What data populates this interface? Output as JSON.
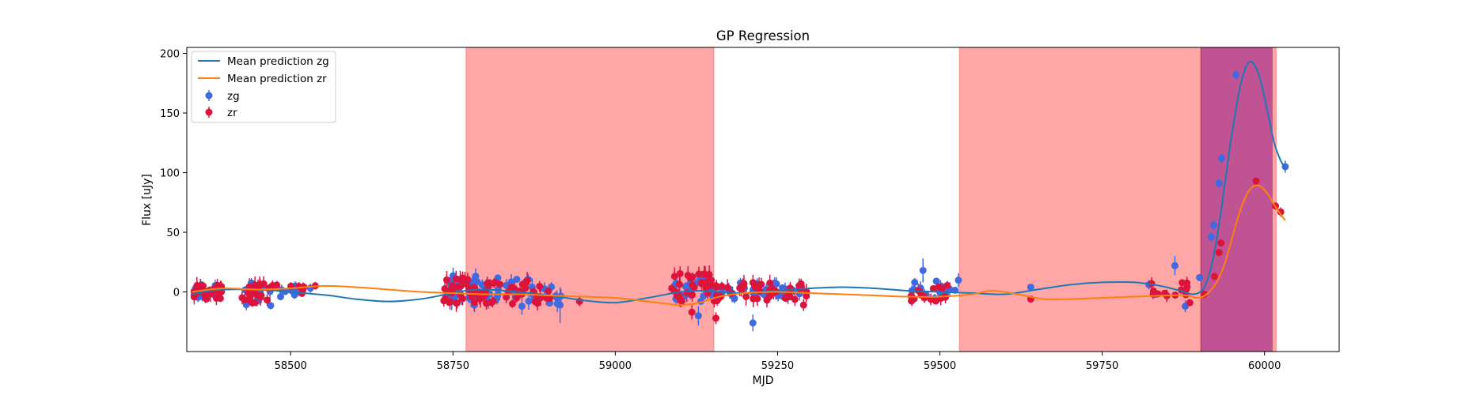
{
  "chart_data": {
    "type": "scatter",
    "title": "GP Regression",
    "xlabel": "MJD",
    "ylabel": "Flux [uJy]",
    "xlim": [
      58340,
      60115
    ],
    "ylim": [
      -50,
      205
    ],
    "xticks": [
      58500,
      58750,
      59000,
      59250,
      59500,
      59750,
      60000
    ],
    "yticks": [
      0,
      50,
      100,
      150,
      200
    ],
    "grid": false,
    "legend_position": "upper-left",
    "colors": {
      "zg_points": "#4169e1",
      "zr_points": "#dc143c",
      "zg_line": "#1f77b4",
      "zr_line": "#ff7f0e",
      "span_red": "#ff0000",
      "span_purple": "#800080"
    },
    "shaded_spans": [
      {
        "x0": 58770,
        "x1": 59152,
        "color": "red"
      },
      {
        "x0": 59530,
        "x1": 59902,
        "color": "red"
      },
      {
        "x0": 59902,
        "x1": 60018,
        "color": "red"
      },
      {
        "x0": 59902,
        "x1": 60012,
        "color": "purple"
      }
    ],
    "lines": [
      {
        "name": "Mean prediction zg",
        "x": [
          58348,
          58375,
          58400,
          58440,
          58480,
          58520,
          58560,
          58600,
          58650,
          58700,
          58740,
          58770,
          58800,
          58850,
          58900,
          58950,
          59000,
          59050,
          59100,
          59130,
          59160,
          59200,
          59250,
          59300,
          59350,
          59400,
          59450,
          59500,
          59550,
          59600,
          59650,
          59700,
          59750,
          59800,
          59840,
          59870,
          59890,
          59905,
          59915,
          59925,
          59935,
          59945,
          59955,
          59965,
          59975,
          59985,
          59995,
          60005,
          60015,
          60025,
          60032
        ],
        "y": [
          -2,
          1,
          2,
          2,
          1,
          -1,
          -3,
          -6,
          -8,
          -6,
          -2,
          1,
          2,
          0,
          -3,
          -7,
          -9,
          -5,
          0,
          1,
          0,
          -1,
          1,
          3,
          4,
          3,
          1,
          0,
          -1,
          -2,
          2,
          6,
          8,
          8,
          5,
          1,
          -2,
          2,
          15,
          40,
          75,
          115,
          150,
          178,
          192,
          190,
          175,
          150,
          125,
          110,
          104
        ]
      },
      {
        "name": "Mean prediction zr",
        "x": [
          58348,
          58375,
          58400,
          58450,
          58500,
          58550,
          58600,
          58650,
          58700,
          58750,
          58800,
          58850,
          58900,
          58950,
          59000,
          59050,
          59080,
          59100,
          59130,
          59160,
          59200,
          59250,
          59300,
          59350,
          59400,
          59450,
          59500,
          59550,
          59580,
          59620,
          59660,
          59700,
          59750,
          59800,
          59850,
          59880,
          59895,
          59905,
          59915,
          59925,
          59935,
          59945,
          59955,
          59965,
          59975,
          59985,
          59995,
          60005,
          60015,
          60025,
          60032
        ],
        "y": [
          0,
          2,
          3,
          2,
          3,
          5,
          4,
          2,
          0,
          -1,
          -2,
          -2,
          -3,
          -4,
          -5,
          -8,
          -10,
          -11,
          -9,
          -4,
          -1,
          0,
          -1,
          -2,
          -3,
          -4,
          -4,
          -2,
          1,
          -2,
          -6,
          -6,
          -5,
          -4,
          -3,
          -3,
          -5,
          -4,
          0,
          7,
          18,
          35,
          55,
          72,
          84,
          89,
          88,
          82,
          73,
          65,
          60
        ]
      }
    ],
    "series": [
      {
        "name": "zg",
        "marker": "circle",
        "seed": 11,
        "clusters": [
          {
            "x0": 58350,
            "x1": 58395,
            "n": 22,
            "ymin": -5,
            "ymax": 6,
            "err": 4
          },
          {
            "x0": 58425,
            "x1": 58470,
            "n": 16,
            "ymin": -12,
            "ymax": 8,
            "err": 4
          },
          {
            "x0": 58480,
            "x1": 58545,
            "n": 10,
            "ymin": -4,
            "ymax": 6,
            "err": 3
          },
          {
            "x0": 58745,
            "x1": 58800,
            "n": 26,
            "ymin": -8,
            "ymax": 14,
            "err": 5
          },
          {
            "x0": 58800,
            "x1": 58870,
            "n": 18,
            "ymin": -14,
            "ymax": 12,
            "err": 5
          },
          {
            "x0": 58870,
            "x1": 58920,
            "n": 10,
            "ymin": -12,
            "ymax": 6,
            "err": 5
          },
          {
            "x0": 59090,
            "x1": 59150,
            "n": 22,
            "ymin": -10,
            "ymax": 12,
            "err": 5
          },
          {
            "x0": 59150,
            "x1": 59230,
            "n": 18,
            "ymin": -6,
            "ymax": 8,
            "err": 4
          },
          {
            "x0": 59230,
            "x1": 59300,
            "n": 14,
            "ymin": -6,
            "ymax": 8,
            "err": 4
          },
          {
            "x0": 59455,
            "x1": 59530,
            "n": 18,
            "ymin": -6,
            "ymax": 10,
            "err": 4
          }
        ],
        "extra": [
          {
            "x": 59128,
            "y": -20,
            "err": 8
          },
          {
            "x": 59212,
            "y": -26,
            "err": 7
          },
          {
            "x": 58915,
            "y": -11,
            "err": 15
          },
          {
            "x": 58783,
            "y": -11,
            "err": 6
          },
          {
            "x": 59474,
            "y": 18,
            "err": 10
          },
          {
            "x": 59640,
            "y": 4,
            "err": 2
          },
          {
            "x": 59822,
            "y": 6,
            "err": 4
          },
          {
            "x": 59832,
            "y": -2,
            "err": 3
          },
          {
            "x": 59862,
            "y": 22,
            "err": 8
          },
          {
            "x": 59878,
            "y": -12,
            "err": 5
          },
          {
            "x": 59900,
            "y": 12,
            "err": 3
          },
          {
            "x": 59918,
            "y": 46,
            "err": 4
          },
          {
            "x": 59922,
            "y": 56,
            "err": 4
          },
          {
            "x": 59930,
            "y": 91,
            "err": 4
          },
          {
            "x": 59934,
            "y": 112,
            "err": 4
          },
          {
            "x": 59956,
            "y": 182,
            "err": 4
          },
          {
            "x": 60032,
            "y": 105,
            "err": 5
          }
        ]
      },
      {
        "name": "zr",
        "marker": "circle",
        "seed": 29,
        "clusters": [
          {
            "x0": 58350,
            "x1": 58395,
            "n": 30,
            "ymin": -6,
            "ymax": 6,
            "err": 5
          },
          {
            "x0": 58425,
            "x1": 58465,
            "n": 18,
            "ymin": -10,
            "ymax": 8,
            "err": 5
          },
          {
            "x0": 58465,
            "x1": 58545,
            "n": 10,
            "ymin": -2,
            "ymax": 8,
            "err": 3
          },
          {
            "x0": 58735,
            "x1": 58810,
            "n": 40,
            "ymin": -10,
            "ymax": 12,
            "err": 5
          },
          {
            "x0": 58810,
            "x1": 58900,
            "n": 28,
            "ymin": -10,
            "ymax": 10,
            "err": 5
          },
          {
            "x0": 59085,
            "x1": 59150,
            "n": 30,
            "ymin": -8,
            "ymax": 16,
            "err": 6
          },
          {
            "x0": 59150,
            "x1": 59230,
            "n": 26,
            "ymin": -8,
            "ymax": 10,
            "err": 5
          },
          {
            "x0": 59230,
            "x1": 59300,
            "n": 20,
            "ymin": -8,
            "ymax": 8,
            "err": 5
          },
          {
            "x0": 59455,
            "x1": 59530,
            "n": 18,
            "ymin": -8,
            "ymax": 6,
            "err": 4
          },
          {
            "x0": 59820,
            "x1": 59885,
            "n": 14,
            "ymin": -5,
            "ymax": 8,
            "err": 4
          }
        ],
        "extra": [
          {
            "x": 59155,
            "y": -22,
            "err": 5
          },
          {
            "x": 59118,
            "y": -17,
            "err": 6
          },
          {
            "x": 58945,
            "y": -8,
            "err": 4
          },
          {
            "x": 59290,
            "y": -11,
            "err": 5
          },
          {
            "x": 59640,
            "y": -6,
            "err": 2
          },
          {
            "x": 59885,
            "y": -9,
            "err": 3
          },
          {
            "x": 59907,
            "y": -2,
            "err": 3
          },
          {
            "x": 59923,
            "y": 13,
            "err": 3
          },
          {
            "x": 59930,
            "y": 33,
            "err": 3
          },
          {
            "x": 59933,
            "y": 41,
            "err": 3
          },
          {
            "x": 59987,
            "y": 93,
            "err": 3
          },
          {
            "x": 60017,
            "y": 72,
            "err": 3
          },
          {
            "x": 60025,
            "y": 67,
            "err": 4
          }
        ]
      }
    ]
  }
}
